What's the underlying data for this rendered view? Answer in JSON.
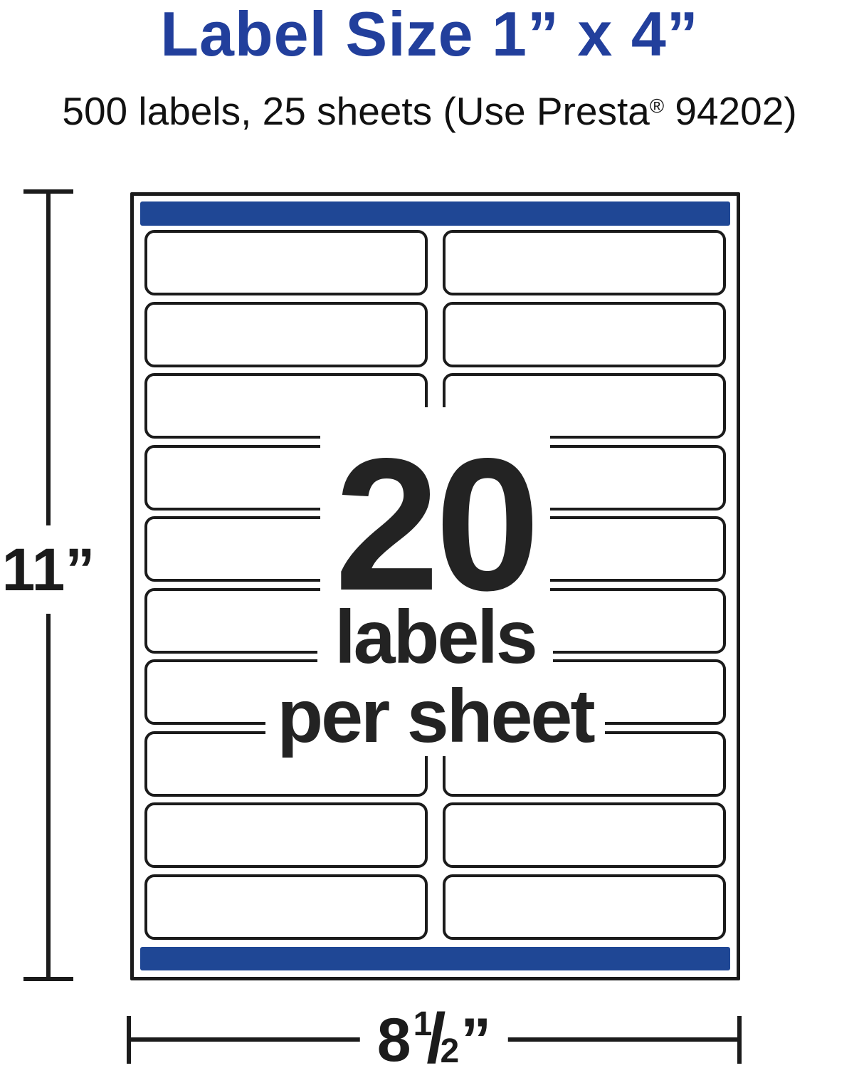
{
  "header": {
    "title": "Label Size 1” x 4”",
    "subtitle_pre": "500 labels, 25 sheets (Use Presta",
    "subtitle_reg": "®",
    "subtitle_post": " 94202)"
  },
  "sheet": {
    "count": "20",
    "labels_word": "labels",
    "per_sheet_word": "per sheet",
    "rows": 10,
    "columns": 2
  },
  "dims": {
    "height": "11”",
    "width_whole": "8",
    "width_num": "1",
    "width_slash": "/",
    "width_den": "2",
    "width_unit": "”"
  },
  "colors": {
    "brand_blue": "#1f4795",
    "title_blue": "#223f9c",
    "ink_black": "#1b1b1b"
  }
}
